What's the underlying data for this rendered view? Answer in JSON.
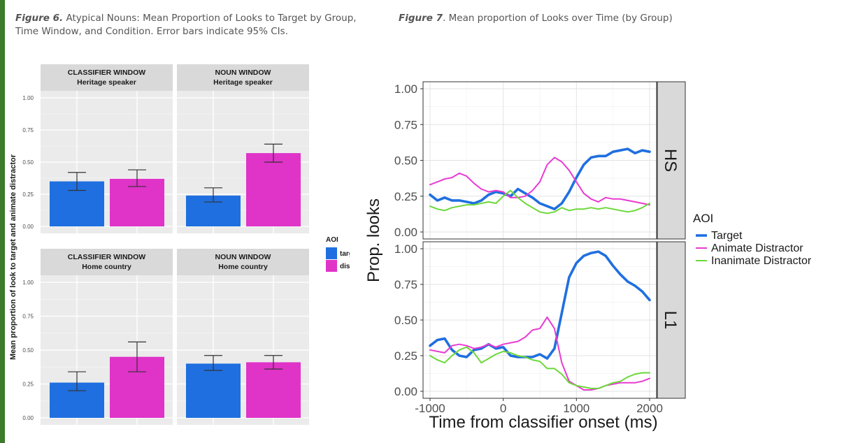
{
  "figure6": {
    "caption_label": "Figure 6.",
    "caption_text": " Atypical Nouns: Mean Proportion of Looks to Target  by Group, Time Window, and Condition. Error bars indicate 95% CIs."
  },
  "figure7": {
    "caption_label": "Figure 7",
    "caption_text": ". Mean proportion of Looks over Time (by Group)"
  },
  "colors": {
    "target": "#1f6fe0",
    "distractor_bar": "#e033c8",
    "animate_line": "#e83bd2",
    "inanimate_line": "#6cd83a",
    "panel_bg": "#ebebeb",
    "strip_bg": "#d9d9d9",
    "page_edge": "#3d7a2a"
  },
  "chart_data": [
    {
      "type": "bar",
      "ylabel": "Mean proportion of look to target and animate distractor",
      "yticks": [
        "0.00",
        "0.25",
        "0.50",
        "0.75",
        "1.00"
      ],
      "ylim": [
        0,
        1
      ],
      "legend_title": "AOI",
      "legend_placement": "right",
      "series": [
        {
          "name": "target",
          "color_key": "target"
        },
        {
          "name": "disAn",
          "color_key": "distractor_bar"
        }
      ],
      "panels": [
        {
          "title_line1": "CLASSIFIER WINDOW",
          "title_line2": "Heritage speaker",
          "values": [
            0.35,
            0.37
          ],
          "ci_low": [
            0.28,
            0.31
          ],
          "ci_high": [
            0.42,
            0.44
          ]
        },
        {
          "title_line1": "NOUN WINDOW",
          "title_line2": "Heritage speaker",
          "values": [
            0.24,
            0.57
          ],
          "ci_low": [
            0.19,
            0.5
          ],
          "ci_high": [
            0.3,
            0.64
          ]
        },
        {
          "title_line1": "CLASSIFIER WINDOW",
          "title_line2": "Home country",
          "values": [
            0.26,
            0.45
          ],
          "ci_low": [
            0.2,
            0.34
          ],
          "ci_high": [
            0.34,
            0.56
          ]
        },
        {
          "title_line1": "NOUN WINDOW",
          "title_line2": "Home country",
          "values": [
            0.4,
            0.41
          ],
          "ci_low": [
            0.35,
            0.36
          ],
          "ci_high": [
            0.46,
            0.46
          ]
        }
      ]
    },
    {
      "type": "line",
      "xlabel": "Time from classifier onset (ms)",
      "ylabel": "Prop. looks",
      "xlim": [
        -1000,
        2000
      ],
      "ylim": [
        0,
        1
      ],
      "xticks": [
        "-1000",
        "0",
        "1000",
        "2000"
      ],
      "yticks": [
        "0.00",
        "0.25",
        "0.50",
        "0.75",
        "1.00"
      ],
      "grid": true,
      "legend_title": "AOI",
      "legend_placement": "right",
      "x": [
        -1000,
        -900,
        -800,
        -700,
        -600,
        -500,
        -400,
        -300,
        -200,
        -100,
        0,
        100,
        200,
        300,
        400,
        500,
        600,
        700,
        800,
        900,
        1000,
        1100,
        1200,
        1300,
        1400,
        1500,
        1600,
        1700,
        1800,
        1900,
        2000
      ],
      "series_legend": [
        {
          "name": "Target",
          "color_key": "target"
        },
        {
          "name": "Animate Distractor",
          "color_key": "animate_line"
        },
        {
          "name": "Inanimate Distractor",
          "color_key": "inanimate_line"
        }
      ],
      "panels": [
        {
          "label": "HS",
          "series": [
            {
              "name": "Target",
              "values": [
                0.26,
                0.22,
                0.24,
                0.22,
                0.22,
                0.21,
                0.2,
                0.22,
                0.26,
                0.28,
                0.27,
                0.25,
                0.3,
                0.27,
                0.24,
                0.2,
                0.18,
                0.16,
                0.2,
                0.28,
                0.38,
                0.47,
                0.52,
                0.53,
                0.53,
                0.56,
                0.57,
                0.58,
                0.55,
                0.57,
                0.56
              ]
            },
            {
              "name": "Animate Distractor",
              "values": [
                0.33,
                0.35,
                0.37,
                0.38,
                0.41,
                0.39,
                0.34,
                0.3,
                0.28,
                0.29,
                0.28,
                0.24,
                0.24,
                0.25,
                0.29,
                0.35,
                0.47,
                0.52,
                0.49,
                0.43,
                0.35,
                0.27,
                0.23,
                0.21,
                0.24,
                0.23,
                0.23,
                0.22,
                0.21,
                0.2,
                0.19
              ]
            },
            {
              "name": "Inanimate Distractor",
              "values": [
                0.18,
                0.16,
                0.15,
                0.17,
                0.18,
                0.19,
                0.19,
                0.2,
                0.21,
                0.2,
                0.25,
                0.29,
                0.24,
                0.2,
                0.17,
                0.14,
                0.13,
                0.14,
                0.17,
                0.15,
                0.16,
                0.16,
                0.17,
                0.16,
                0.17,
                0.16,
                0.15,
                0.14,
                0.15,
                0.17,
                0.2
              ]
            }
          ]
        },
        {
          "label": "L1",
          "series": [
            {
              "name": "Target",
              "values": [
                0.32,
                0.36,
                0.37,
                0.29,
                0.25,
                0.24,
                0.29,
                0.3,
                0.33,
                0.3,
                0.31,
                0.25,
                0.24,
                0.24,
                0.24,
                0.26,
                0.23,
                0.3,
                0.55,
                0.8,
                0.9,
                0.95,
                0.97,
                0.98,
                0.95,
                0.88,
                0.82,
                0.77,
                0.74,
                0.7,
                0.64
              ]
            },
            {
              "name": "Animate Distractor",
              "values": [
                0.29,
                0.28,
                0.27,
                0.32,
                0.33,
                0.32,
                0.3,
                0.31,
                0.33,
                0.31,
                0.33,
                0.34,
                0.35,
                0.38,
                0.43,
                0.44,
                0.52,
                0.44,
                0.2,
                0.07,
                0.04,
                0.01,
                0.01,
                0.02,
                0.04,
                0.05,
                0.06,
                0.06,
                0.06,
                0.07,
                0.09
              ]
            },
            {
              "name": "Inanimate Distractor",
              "values": [
                0.25,
                0.22,
                0.2,
                0.25,
                0.29,
                0.31,
                0.27,
                0.2,
                0.23,
                0.26,
                0.28,
                0.27,
                0.25,
                0.24,
                0.22,
                0.21,
                0.16,
                0.16,
                0.12,
                0.06,
                0.04,
                0.03,
                0.02,
                0.02,
                0.04,
                0.06,
                0.07,
                0.1,
                0.12,
                0.13,
                0.13
              ]
            }
          ]
        }
      ]
    }
  ]
}
